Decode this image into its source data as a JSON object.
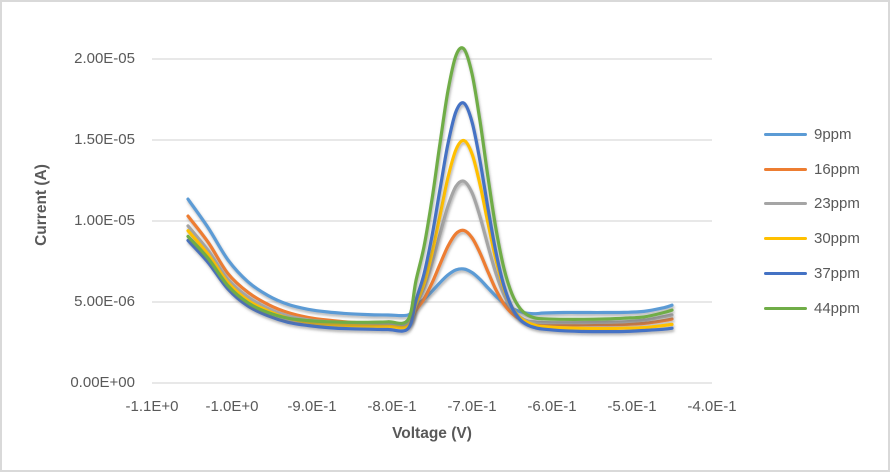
{
  "colors": {
    "background": "#FFFFFF",
    "border": "#D9D9D9",
    "grid": "#D9D9D9",
    "text": "#595959"
  },
  "chart_data": {
    "type": "line",
    "title": "",
    "xlabel": "Voltage (V)",
    "ylabel": "Current (A)",
    "grid": "horizontal",
    "legend_position": "right",
    "xlim": [
      -1.1,
      -0.4
    ],
    "ylim": [
      0,
      2.2e-05
    ],
    "y_ticks": [
      {
        "label": "0.00E+00",
        "value": 0
      },
      {
        "label": "5.00E-06",
        "value": 5e-06
      },
      {
        "label": "1.00E-05",
        "value": 1e-05
      },
      {
        "label": "1.50E-05",
        "value": 1.5e-05
      },
      {
        "label": "2.00E-05",
        "value": 2e-05
      }
    ],
    "x_ticks": [
      {
        "label": "-1.1E+0",
        "value": -1.1
      },
      {
        "label": "-1.0E+0",
        "value": -1.0
      },
      {
        "label": "-9.0E-1",
        "value": -0.9
      },
      {
        "label": "-8.0E-1",
        "value": -0.8
      },
      {
        "label": "-7.0E-1",
        "value": -0.7
      },
      {
        "label": "-6.0E-1",
        "value": -0.6
      },
      {
        "label": "-5.0E-1",
        "value": -0.5
      },
      {
        "label": "-4.0E-1",
        "value": -0.4
      }
    ],
    "y_value_scale": 1e-06,
    "values_unit": "amperes = listed value x 1e-6",
    "x": [
      -1.055,
      -1.03,
      -1.005,
      -0.98,
      -0.955,
      -0.93,
      -0.905,
      -0.88,
      -0.855,
      -0.83,
      -0.805,
      -0.78,
      -0.77,
      -0.76,
      -0.75,
      -0.74,
      -0.73,
      -0.72,
      -0.71,
      -0.7,
      -0.69,
      -0.68,
      -0.67,
      -0.66,
      -0.65,
      -0.64,
      -0.63,
      -0.62,
      -0.61,
      -0.585,
      -0.56,
      -0.535,
      -0.51,
      -0.485,
      -0.46,
      -0.45
    ],
    "series": [
      {
        "name": "9ppm",
        "color": "#5B9BD5",
        "peak_voltage": -0.71,
        "peak_current": 7e-06,
        "values_microamp": [
          11.35,
          9.6,
          7.6,
          6.25,
          5.4,
          4.85,
          4.55,
          4.38,
          4.28,
          4.22,
          4.2,
          4.2,
          4.78,
          5.17,
          5.66,
          6.2,
          6.67,
          6.98,
          7.04,
          6.82,
          6.4,
          5.87,
          5.36,
          4.92,
          4.61,
          4.41,
          4.3,
          4.28,
          4.32,
          4.35,
          4.35,
          4.35,
          4.36,
          4.42,
          4.65,
          4.8
        ]
      },
      {
        "name": "16ppm",
        "color": "#ED7D31",
        "peak_voltage": -0.71,
        "peak_current": 9.4e-06,
        "values_microamp": [
          10.3,
          8.7,
          6.75,
          5.6,
          4.85,
          4.35,
          4.05,
          3.88,
          3.76,
          3.7,
          3.66,
          3.65,
          4.49,
          5.19,
          6.17,
          7.33,
          8.45,
          9.22,
          9.42,
          8.97,
          8.03,
          6.86,
          5.75,
          4.87,
          4.29,
          3.94,
          3.77,
          3.68,
          3.64,
          3.6,
          3.6,
          3.6,
          3.62,
          3.68,
          3.85,
          3.95
        ]
      },
      {
        "name": "23ppm",
        "color": "#A5A5A5",
        "peak_voltage": -0.71,
        "peak_current": 1.25e-05,
        "values_microamp": [
          9.7,
          8.2,
          6.4,
          5.3,
          4.6,
          4.15,
          3.9,
          3.78,
          3.7,
          3.67,
          3.65,
          3.67,
          4.86,
          5.91,
          7.4,
          9.19,
          10.93,
          12.14,
          12.45,
          11.75,
          10.27,
          8.46,
          6.75,
          5.43,
          4.56,
          4.07,
          3.83,
          3.76,
          3.73,
          3.72,
          3.73,
          3.75,
          3.78,
          3.88,
          4.1,
          4.2
        ]
      },
      {
        "name": "30ppm",
        "color": "#FFC000",
        "peak_voltage": -0.71,
        "peak_current": 1.5e-05,
        "values_microamp": [
          9.4,
          7.95,
          6.2,
          5.1,
          4.45,
          4.0,
          3.75,
          3.62,
          3.55,
          3.52,
          3.5,
          3.52,
          4.86,
          6.13,
          8.01,
          10.34,
          12.69,
          14.41,
          14.96,
          14.15,
          12.25,
          9.86,
          7.59,
          5.83,
          4.68,
          4.03,
          3.72,
          3.55,
          3.48,
          3.4,
          3.37,
          3.36,
          3.38,
          3.42,
          3.55,
          3.62
        ]
      },
      {
        "name": "37ppm",
        "color": "#4472C4",
        "peak_voltage": -0.71,
        "peak_current": 1.73e-05,
        "values_microamp": [
          8.8,
          7.45,
          5.8,
          4.75,
          4.15,
          3.75,
          3.55,
          3.42,
          3.35,
          3.32,
          3.3,
          3.35,
          5.11,
          6.73,
          9.08,
          11.96,
          14.78,
          16.76,
          17.27,
          16.12,
          13.71,
          10.78,
          8.06,
          5.99,
          4.66,
          3.92,
          3.57,
          3.4,
          3.32,
          3.22,
          3.18,
          3.17,
          3.18,
          3.24,
          3.32,
          3.38
        ]
      },
      {
        "name": "44ppm",
        "color": "#70AD47",
        "peak_voltage": -0.71,
        "peak_current": 2.06e-05,
        "values_microamp": [
          9.05,
          7.7,
          6.0,
          4.95,
          4.35,
          4.0,
          3.85,
          3.78,
          3.75,
          3.75,
          3.78,
          3.9,
          6.33,
          8.42,
          11.34,
          14.79,
          18.05,
          20.22,
          20.61,
          19.09,
          16.17,
          12.69,
          9.5,
          7.06,
          5.49,
          4.61,
          4.18,
          4.0,
          3.96,
          3.93,
          3.93,
          3.95,
          4.0,
          4.08,
          4.35,
          4.5
        ]
      }
    ]
  }
}
